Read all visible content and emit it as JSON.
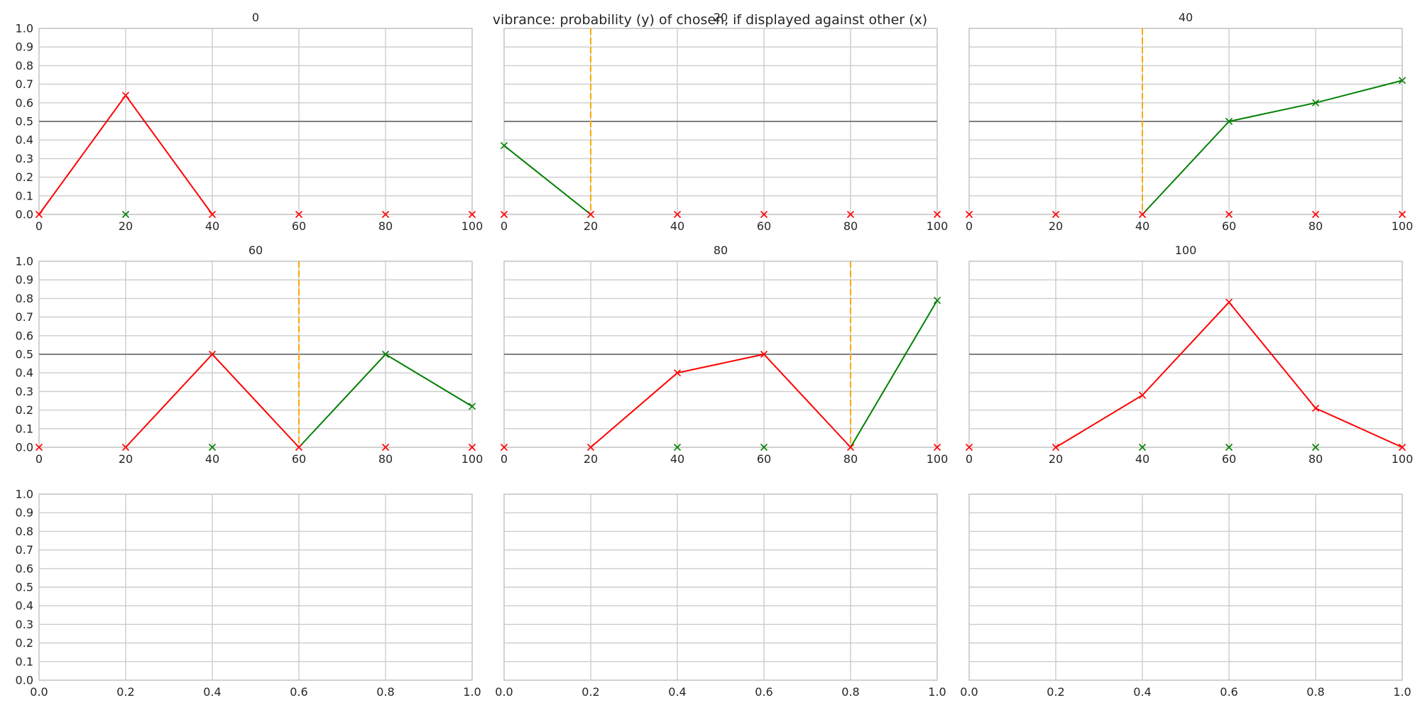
{
  "chart_data": {
    "type": "line",
    "title": "vibrance: probability (y) of chosen, if displayed against other (x)",
    "colors": {
      "low_series": "#ff0000",
      "high_series": "#008000",
      "reference_line": "#ffa500",
      "half_line": "#808080",
      "grid": "#cccccc",
      "spine": "#cccccc"
    },
    "panels": [
      {
        "title": "0",
        "ylim": [
          0,
          1
        ],
        "xlim": [
          0,
          100
        ],
        "xticks": [
          "0",
          "20",
          "40",
          "60",
          "80",
          "100"
        ],
        "yticks": [
          "0.0",
          "0.1",
          "0.2",
          "0.3",
          "0.4",
          "0.5",
          "0.6",
          "0.7",
          "0.8",
          "0.9",
          "1.0"
        ],
        "reference_x": null,
        "half_line": true,
        "low_series": {
          "x": [
            0,
            20,
            40
          ],
          "y": [
            0.0,
            0.64,
            0.0
          ]
        },
        "high_series": null,
        "markers": [
          {
            "x": 0,
            "y": 0.0,
            "series": "low"
          },
          {
            "x": 20,
            "y": 0.64,
            "series": "low"
          },
          {
            "x": 20,
            "y": 0.0,
            "series": "high"
          },
          {
            "x": 40,
            "y": 0.0,
            "series": "low"
          },
          {
            "x": 60,
            "y": 0.0,
            "series": "low"
          },
          {
            "x": 80,
            "y": 0.0,
            "series": "low"
          },
          {
            "x": 100,
            "y": 0.0,
            "series": "low"
          }
        ]
      },
      {
        "title": "20",
        "ylim": [
          0,
          1
        ],
        "xlim": [
          0,
          100
        ],
        "xticks": [
          "0",
          "20",
          "40",
          "60",
          "80",
          "100"
        ],
        "yticks": [],
        "reference_x": 20,
        "half_line": true,
        "low_series": null,
        "high_series": {
          "x": [
            0,
            20
          ],
          "y": [
            0.37,
            0.0
          ]
        },
        "markers": [
          {
            "x": 0,
            "y": 0.37,
            "series": "high"
          },
          {
            "x": 0,
            "y": 0.0,
            "series": "low"
          },
          {
            "x": 20,
            "y": 0.0,
            "series": "low"
          },
          {
            "x": 40,
            "y": 0.0,
            "series": "low"
          },
          {
            "x": 60,
            "y": 0.0,
            "series": "low"
          },
          {
            "x": 80,
            "y": 0.0,
            "series": "low"
          },
          {
            "x": 100,
            "y": 0.0,
            "series": "low"
          }
        ]
      },
      {
        "title": "40",
        "ylim": [
          0,
          1
        ],
        "xlim": [
          0,
          100
        ],
        "xticks": [
          "0",
          "20",
          "40",
          "60",
          "80",
          "100"
        ],
        "yticks": [],
        "reference_x": 40,
        "half_line": true,
        "low_series": null,
        "high_series": {
          "x": [
            40,
            60,
            80,
            100
          ],
          "y": [
            0.0,
            0.5,
            0.6,
            0.72
          ]
        },
        "markers": [
          {
            "x": 0,
            "y": 0.0,
            "series": "low"
          },
          {
            "x": 20,
            "y": 0.0,
            "series": "low"
          },
          {
            "x": 40,
            "y": 0.0,
            "series": "low"
          },
          {
            "x": 60,
            "y": 0.0,
            "series": "low"
          },
          {
            "x": 80,
            "y": 0.0,
            "series": "low"
          },
          {
            "x": 100,
            "y": 0.0,
            "series": "low"
          },
          {
            "x": 60,
            "y": 0.5,
            "series": "high"
          },
          {
            "x": 80,
            "y": 0.6,
            "series": "high"
          },
          {
            "x": 100,
            "y": 0.72,
            "series": "high"
          }
        ]
      },
      {
        "title": "60",
        "ylim": [
          0,
          1
        ],
        "xlim": [
          0,
          100
        ],
        "xticks": [
          "0",
          "20",
          "40",
          "60",
          "80",
          "100"
        ],
        "yticks": [
          "0.0",
          "0.1",
          "0.2",
          "0.3",
          "0.4",
          "0.5",
          "0.6",
          "0.7",
          "0.8",
          "0.9",
          "1.0"
        ],
        "reference_x": 60,
        "half_line": true,
        "low_series": {
          "x": [
            20,
            40,
            60
          ],
          "y": [
            0.0,
            0.5,
            0.0
          ]
        },
        "high_series": {
          "x": [
            60,
            80,
            100
          ],
          "y": [
            0.0,
            0.5,
            0.22
          ]
        },
        "markers": [
          {
            "x": 0,
            "y": 0.0,
            "series": "low"
          },
          {
            "x": 20,
            "y": 0.0,
            "series": "low"
          },
          {
            "x": 40,
            "y": 0.5,
            "series": "low"
          },
          {
            "x": 40,
            "y": 0.0,
            "series": "high"
          },
          {
            "x": 60,
            "y": 0.0,
            "series": "low"
          },
          {
            "x": 80,
            "y": 0.5,
            "series": "high"
          },
          {
            "x": 80,
            "y": 0.0,
            "series": "low"
          },
          {
            "x": 100,
            "y": 0.22,
            "series": "high"
          },
          {
            "x": 100,
            "y": 0.0,
            "series": "low"
          }
        ]
      },
      {
        "title": "80",
        "ylim": [
          0,
          1
        ],
        "xlim": [
          0,
          100
        ],
        "xticks": [
          "0",
          "20",
          "40",
          "60",
          "80",
          "100"
        ],
        "yticks": [],
        "reference_x": 80,
        "half_line": true,
        "low_series": {
          "x": [
            20,
            40,
            60,
            80
          ],
          "y": [
            0.0,
            0.4,
            0.5,
            0.0
          ]
        },
        "high_series": {
          "x": [
            80,
            100
          ],
          "y": [
            0.0,
            0.79
          ]
        },
        "markers": [
          {
            "x": 0,
            "y": 0.0,
            "series": "low"
          },
          {
            "x": 20,
            "y": 0.0,
            "series": "low"
          },
          {
            "x": 40,
            "y": 0.4,
            "series": "low"
          },
          {
            "x": 40,
            "y": 0.0,
            "series": "high"
          },
          {
            "x": 60,
            "y": 0.5,
            "series": "low"
          },
          {
            "x": 60,
            "y": 0.0,
            "series": "high"
          },
          {
            "x": 80,
            "y": 0.0,
            "series": "low"
          },
          {
            "x": 100,
            "y": 0.79,
            "series": "high"
          },
          {
            "x": 100,
            "y": 0.0,
            "series": "low"
          }
        ]
      },
      {
        "title": "100",
        "ylim": [
          0,
          1
        ],
        "xlim": [
          0,
          100
        ],
        "xticks": [
          "0",
          "20",
          "40",
          "60",
          "80",
          "100"
        ],
        "yticks": [],
        "reference_x": null,
        "half_line": true,
        "low_series": {
          "x": [
            20,
            40,
            60,
            80,
            100
          ],
          "y": [
            0.0,
            0.28,
            0.78,
            0.21,
            0.0
          ]
        },
        "high_series": null,
        "markers": [
          {
            "x": 0,
            "y": 0.0,
            "series": "low"
          },
          {
            "x": 20,
            "y": 0.0,
            "series": "low"
          },
          {
            "x": 40,
            "y": 0.28,
            "series": "low"
          },
          {
            "x": 40,
            "y": 0.0,
            "series": "high"
          },
          {
            "x": 60,
            "y": 0.78,
            "series": "low"
          },
          {
            "x": 60,
            "y": 0.0,
            "series": "high"
          },
          {
            "x": 80,
            "y": 0.21,
            "series": "low"
          },
          {
            "x": 80,
            "y": 0.0,
            "series": "high"
          },
          {
            "x": 100,
            "y": 0.0,
            "series": "low"
          }
        ]
      },
      {
        "title": "",
        "ylim": [
          0,
          1
        ],
        "xlim": [
          0,
          1
        ],
        "xticks": [
          "0.0",
          "0.2",
          "0.4",
          "0.6",
          "0.8",
          "1.0"
        ],
        "yticks": [
          "0.0",
          "0.1",
          "0.2",
          "0.3",
          "0.4",
          "0.5",
          "0.6",
          "0.7",
          "0.8",
          "0.9",
          "1.0"
        ],
        "reference_x": null,
        "half_line": false,
        "low_series": null,
        "high_series": null,
        "markers": []
      },
      {
        "title": "",
        "ylim": [
          0,
          1
        ],
        "xlim": [
          0,
          1
        ],
        "xticks": [
          "0.0",
          "0.2",
          "0.4",
          "0.6",
          "0.8",
          "1.0"
        ],
        "yticks": [],
        "reference_x": null,
        "half_line": false,
        "low_series": null,
        "high_series": null,
        "markers": []
      },
      {
        "title": "",
        "ylim": [
          0,
          1
        ],
        "xlim": [
          0,
          1
        ],
        "xticks": [
          "0.0",
          "0.2",
          "0.4",
          "0.6",
          "0.8",
          "1.0"
        ],
        "yticks": [],
        "reference_x": null,
        "half_line": false,
        "low_series": null,
        "high_series": null,
        "markers": []
      }
    ]
  }
}
